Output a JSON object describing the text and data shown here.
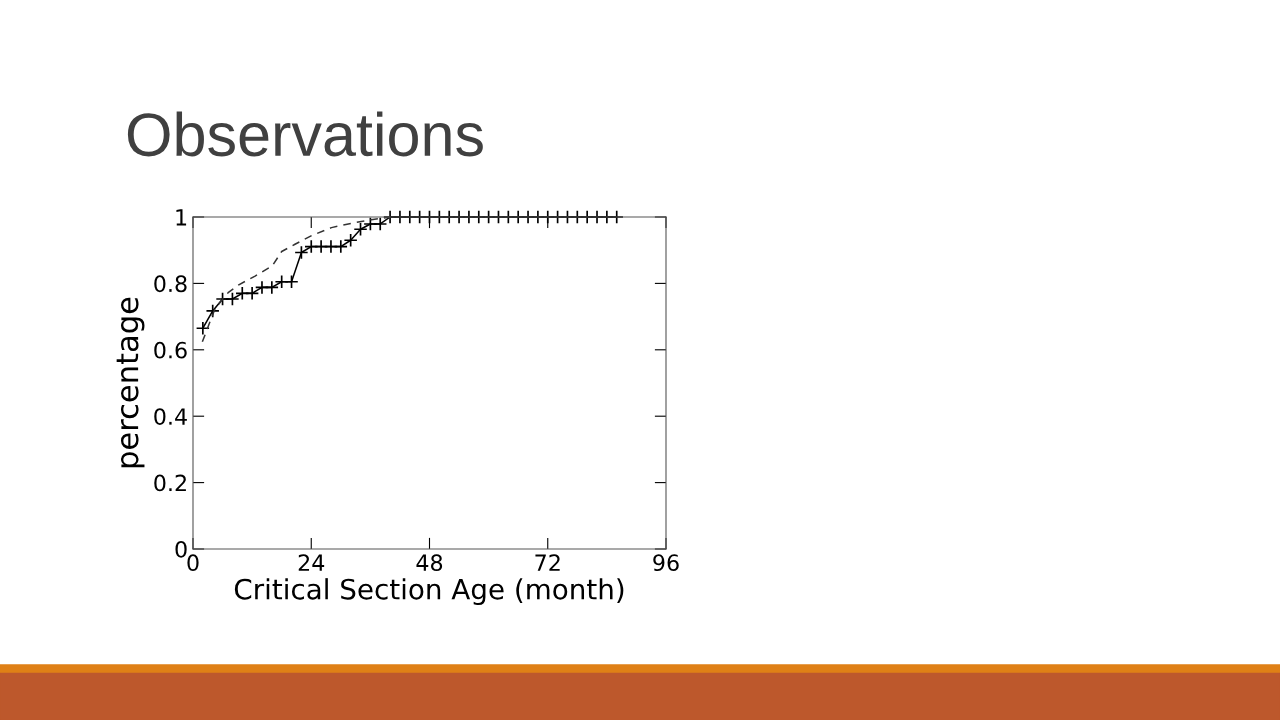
{
  "chart_data": {
    "type": "line",
    "title": "Observations",
    "xlabel": "Critical Section Age (month)",
    "ylabel": "percentage",
    "xlim": [
      0,
      96
    ],
    "xticks": [
      0,
      24,
      48,
      72,
      96
    ],
    "ylim": [
      0,
      1
    ],
    "yticks": [
      0,
      0.2,
      0.4,
      0.6,
      0.8,
      1
    ],
    "grid": false,
    "legend": false,
    "series": [
      {
        "color": "#000000",
        "marker": "cross",
        "line_style": "solid",
        "x": [
          2,
          4,
          6,
          8,
          10,
          12,
          14,
          16,
          18,
          20,
          22,
          24,
          26,
          28,
          30,
          32,
          34,
          36,
          38,
          40,
          42,
          44,
          46,
          48,
          50,
          52,
          54,
          56,
          58,
          60,
          62,
          64,
          66,
          68,
          70,
          72,
          74,
          76,
          78,
          80,
          82,
          84,
          86
        ],
        "values": [
          0.665,
          0.717,
          0.753,
          0.753,
          0.77,
          0.77,
          0.788,
          0.788,
          0.805,
          0.805,
          0.893,
          0.911,
          0.911,
          0.911,
          0.911,
          0.93,
          0.963,
          0.979,
          0.979,
          1,
          1,
          1,
          1,
          1,
          1,
          1,
          1,
          1,
          1,
          1,
          1,
          1,
          1,
          1,
          1,
          1,
          1,
          1,
          1,
          1,
          1,
          1,
          1
        ]
      },
      {
        "color": "#333333",
        "marker": "none",
        "line_style": "dashed",
        "x": [
          1.9,
          3,
          4.5,
          7.2,
          9.2,
          12.6,
          16.1,
          18,
          20.7,
          24.1,
          28.1,
          32.2,
          36.2,
          40
        ],
        "values": [
          0.624,
          0.667,
          0.725,
          0.773,
          0.795,
          0.822,
          0.853,
          0.896,
          0.918,
          0.944,
          0.968,
          0.981,
          0.992,
          1
        ]
      }
    ]
  }
}
